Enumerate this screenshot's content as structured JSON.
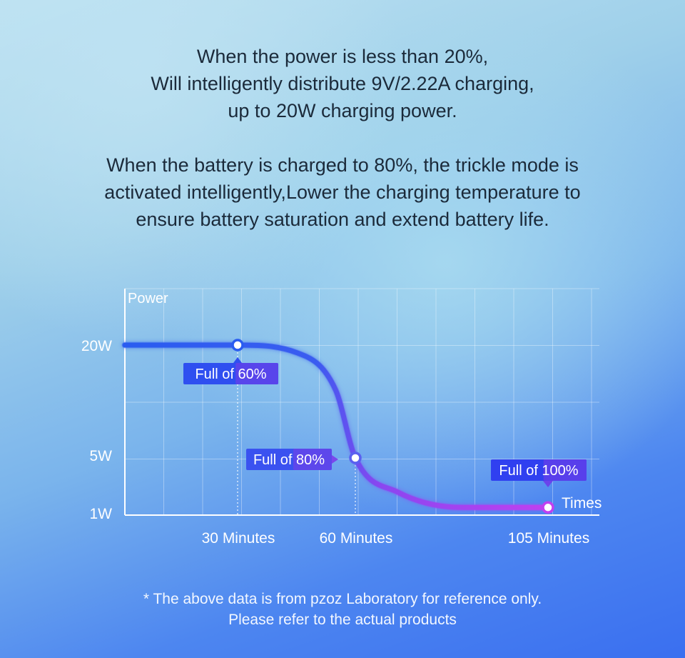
{
  "header": {
    "block1": [
      "When the power is less than 20%,",
      "Will intelligently distribute 9V/2.22A charging,",
      "up to 20W charging power."
    ],
    "block2": [
      "When the battery is charged to 80%, the trickle mode is",
      "activated intelligently,Lower the charging temperature to",
      "ensure battery saturation and extend battery life."
    ]
  },
  "chart_data": {
    "type": "line",
    "ylabel": "Power",
    "xlabel": "Times",
    "y_ticks": [
      "20W",
      "5W",
      "1W"
    ],
    "x_ticks": [
      {
        "value": 30,
        "label": "30 Minutes"
      },
      {
        "value": 60,
        "label": "60 Minutes"
      },
      {
        "value": 105,
        "label": "105 Minutes"
      }
    ],
    "series": [
      {
        "x": [
          0,
          30,
          45,
          55,
          60,
          70,
          85,
          105
        ],
        "y": [
          "20W",
          "20W",
          "19W",
          "14W",
          "5W",
          "2.5W",
          "1.4W",
          "1.4W"
        ]
      }
    ],
    "annotations": [
      {
        "x": 30,
        "label": "Full of 60%"
      },
      {
        "x": 60,
        "label": "Full of 80%"
      },
      {
        "x": 105,
        "label": "Full of 100%"
      }
    ],
    "colors": {
      "start": "#2a5cf0",
      "end": "#c040f0"
    },
    "grid": true
  },
  "footnote": [
    "* The above data is from pzoz Laboratory for reference only.",
    "Please refer to the actual products"
  ]
}
